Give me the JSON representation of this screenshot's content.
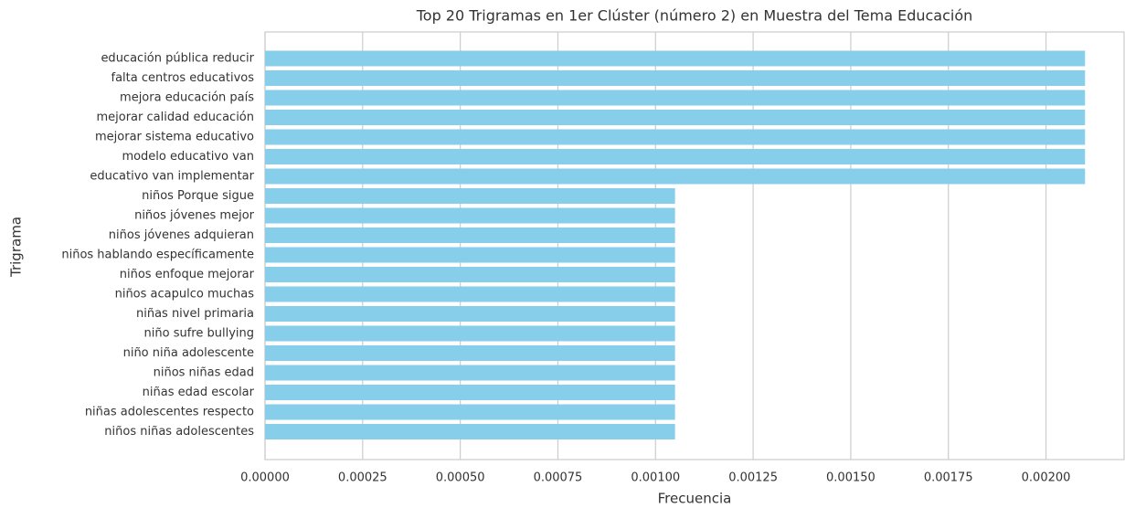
{
  "chart_data": {
    "type": "barh",
    "title": "Top 20 Trigramas en 1er Clúster (número 2) en Muestra del Tema Educación",
    "xlabel": "Frecuencia",
    "ylabel": "Trigrama",
    "categories": [
      "educación pública reducir",
      "falta centros educativos",
      "mejora educación país",
      "mejorar calidad educación",
      "mejorar sistema educativo",
      "modelo educativo van",
      "educativo van implementar",
      "niños Porque sigue",
      "niños jóvenes mejor",
      "niños jóvenes adquieran",
      "niños hablando específicamente",
      "niños enfoque mejorar",
      "niños acapulco muchas",
      "niñas nivel primaria",
      "niño sufre bullying",
      "niño niña adolescente",
      "niños niñas edad",
      "niñas edad escolar",
      "niñas adolescentes respecto",
      "niños niñas adolescentes"
    ],
    "values": [
      0.0021,
      0.0021,
      0.0021,
      0.0021,
      0.0021,
      0.0021,
      0.0021,
      0.00105,
      0.00105,
      0.00105,
      0.00105,
      0.00105,
      0.00105,
      0.00105,
      0.00105,
      0.00105,
      0.00105,
      0.00105,
      0.00105,
      0.00105
    ],
    "color": "#87ceeb",
    "xlim": [
      0,
      0.0022
    ],
    "xticks": [
      {
        "value": 0,
        "label": "0.00000"
      },
      {
        "value": 0.00025,
        "label": "0.00025"
      },
      {
        "value": 0.0005,
        "label": "0.00050"
      },
      {
        "value": 0.00075,
        "label": "0.00075"
      },
      {
        "value": 0.001,
        "label": "0.00100"
      },
      {
        "value": 0.00125,
        "label": "0.00125"
      },
      {
        "value": 0.0015,
        "label": "0.00150"
      },
      {
        "value": 0.00175,
        "label": "0.00175"
      },
      {
        "value": 0.002,
        "label": "0.00200"
      }
    ],
    "grid": true
  }
}
